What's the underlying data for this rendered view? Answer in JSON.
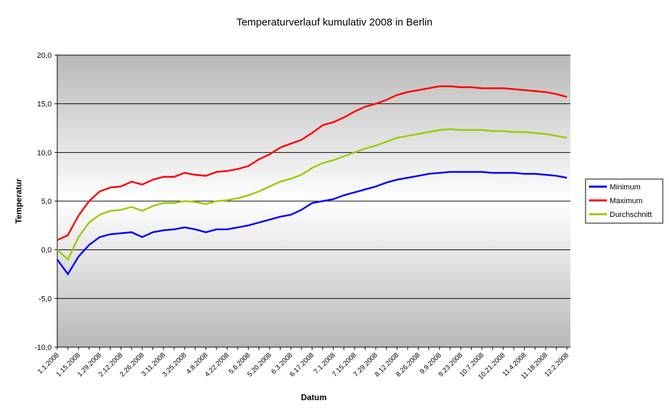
{
  "chart_data": {
    "type": "line",
    "title": "Temperaturverlauf kumulativ 2008 in Berlin",
    "x_label": "Datum",
    "y_label": "Temperatur",
    "categories": [
      "1.1.2008",
      null,
      "1.15.2008",
      null,
      "1.29.2008",
      null,
      "2.12.2008",
      null,
      "2.26.2008",
      null,
      "3.11.2008",
      null,
      "3.25.2008",
      null,
      "4.8.2008",
      null,
      "4.22.2008",
      null,
      "5.6.2008",
      null,
      "5.20.2008",
      null,
      "6.3.2008",
      null,
      "6.17.2008",
      null,
      "7.1.2008",
      null,
      "7.15.2008",
      null,
      "7.29.2008",
      null,
      "8.12.2008",
      null,
      "8.26.2008",
      null,
      "9.9.2008",
      null,
      "9.23.2008",
      null,
      "10.7.2008",
      null,
      "10.21.2008",
      null,
      "11.4.2008",
      null,
      "11.18.2008",
      null,
      "12.2.2008"
    ],
    "series": [
      {
        "name": "Minimum",
        "color": "#0000ff",
        "values": [
          -1.0,
          -2.5,
          -0.7,
          0.5,
          1.3,
          1.6,
          1.7,
          1.8,
          1.3,
          1.8,
          2.0,
          2.1,
          2.3,
          2.1,
          1.8,
          2.1,
          2.1,
          2.3,
          2.5,
          2.8,
          3.1,
          3.4,
          3.6,
          4.1,
          4.8,
          5.0,
          5.2,
          5.6,
          5.9,
          6.2,
          6.5,
          6.9,
          7.2,
          7.4,
          7.6,
          7.8,
          7.9,
          8.0,
          8.0,
          8.0,
          8.0,
          7.9,
          7.9,
          7.9,
          7.8,
          7.8,
          7.7,
          7.6,
          7.4
        ]
      },
      {
        "name": "Maximum",
        "color": "#ff0000",
        "values": [
          1.0,
          1.5,
          3.5,
          5.0,
          6.0,
          6.4,
          6.5,
          7.0,
          6.7,
          7.2,
          7.5,
          7.5,
          7.9,
          7.7,
          7.6,
          8.0,
          8.1,
          8.3,
          8.6,
          9.3,
          9.8,
          10.5,
          10.9,
          11.3,
          12.0,
          12.8,
          13.1,
          13.6,
          14.2,
          14.7,
          15.0,
          15.4,
          15.9,
          16.2,
          16.4,
          16.6,
          16.8,
          16.8,
          16.7,
          16.7,
          16.6,
          16.6,
          16.6,
          16.5,
          16.4,
          16.3,
          16.2,
          16.0,
          15.7
        ]
      },
      {
        "name": "Durchschnitt",
        "color": "#99cc00",
        "values": [
          0.0,
          -1.0,
          1.3,
          2.8,
          3.6,
          4.0,
          4.1,
          4.4,
          4.0,
          4.5,
          4.8,
          4.8,
          5.0,
          4.9,
          4.7,
          5.0,
          5.1,
          5.3,
          5.6,
          6.0,
          6.5,
          7.0,
          7.3,
          7.7,
          8.4,
          8.9,
          9.2,
          9.6,
          10.0,
          10.4,
          10.7,
          11.1,
          11.5,
          11.7,
          11.9,
          12.1,
          12.3,
          12.4,
          12.3,
          12.3,
          12.3,
          12.2,
          12.2,
          12.1,
          12.1,
          12.0,
          11.9,
          11.7,
          11.5
        ]
      }
    ],
    "ylim": [
      -10,
      20
    ],
    "yticks": [
      {
        "value": -10,
        "label": "-10,0"
      },
      {
        "value": -5,
        "label": "-5,0"
      },
      {
        "value": 0,
        "label": "0,0"
      },
      {
        "value": 5,
        "label": "5,0"
      },
      {
        "value": 10,
        "label": "10,0"
      },
      {
        "value": 15,
        "label": "15,0"
      },
      {
        "value": 20,
        "label": "20,0"
      }
    ],
    "grid": true,
    "legend": "right"
  }
}
